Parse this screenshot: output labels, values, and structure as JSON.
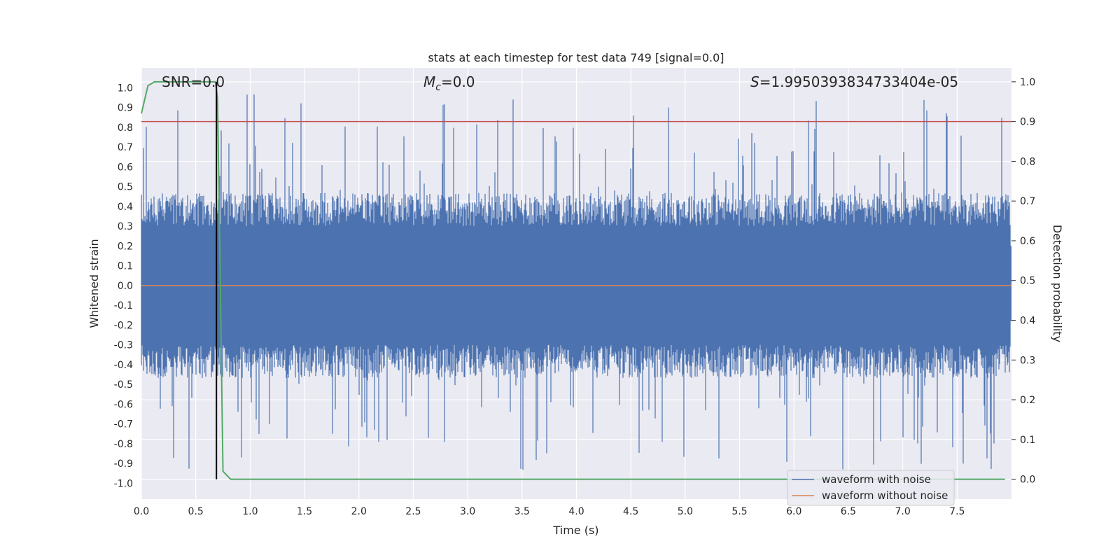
{
  "chart_data": {
    "type": "line",
    "title": "stats at each timestep for test data 749 [signal=0.0]",
    "xlabel": "Time (s)",
    "ylabel": "Whitened strain",
    "y2label": "Detection probability",
    "xlim": [
      0.0,
      8.0
    ],
    "ylim": [
      -1.08,
      1.1
    ],
    "y2lim": [
      -0.05,
      1.035
    ],
    "xticks": [
      "0.0",
      "0.5",
      "1.0",
      "1.5",
      "2.0",
      "2.5",
      "3.0",
      "3.5",
      "4.0",
      "4.5",
      "5.0",
      "5.5",
      "6.0",
      "6.5",
      "7.0",
      "7.5"
    ],
    "yticks": [
      "1.0",
      "0.9",
      "0.8",
      "0.7",
      "0.6",
      "0.5",
      "0.4",
      "0.3",
      "0.2",
      "0.1",
      "0.0",
      "-0.1",
      "-0.2",
      "-0.3",
      "-0.4",
      "-0.5",
      "-0.6",
      "-0.7",
      "-0.8",
      "-0.9",
      "-1.0"
    ],
    "y2ticks": [
      "1.0",
      "0.9",
      "0.8",
      "0.7",
      "0.6",
      "0.5",
      "0.4",
      "0.3",
      "0.2",
      "0.1",
      "0.0"
    ],
    "annotations": {
      "snr": "SNR=0.0",
      "mc_symbol": "M",
      "mc_sub": "c",
      "mc_value": "=0.0",
      "s_symbol": "S",
      "s_value": "=1.9950393834733404e-05"
    },
    "threshold": {
      "y2": 0.9,
      "color": "#c44e52"
    },
    "marker_time": 0.69,
    "legend": {
      "placement": "lower-right",
      "entries": [
        {
          "label": "waveform with noise",
          "color": "#4c72b0"
        },
        {
          "label": "waveform without noise",
          "color": "#dd8452"
        }
      ]
    },
    "series": [
      {
        "name": "waveform with noise",
        "color": "#4c72b0",
        "description": "noise-only whitened strain, amplitude roughly between -0.98 and 1.0"
      },
      {
        "name": "waveform without noise",
        "color": "#dd8452",
        "values_constant": 0.0
      },
      {
        "name": "detection probability",
        "color": "#55a868",
        "axis": "y2",
        "x": [
          0.0,
          0.06,
          0.12,
          0.2,
          0.4,
          0.6,
          0.68,
          0.7,
          0.72,
          0.75,
          0.82,
          1.0,
          2.0,
          4.0,
          6.0,
          7.94
        ],
        "values": [
          0.92,
          0.99,
          1.0,
          1.0,
          1.0,
          1.0,
          1.0,
          0.96,
          0.6,
          0.02,
          0.0,
          0.0,
          0.0,
          0.0,
          0.0,
          0.0
        ]
      }
    ]
  }
}
